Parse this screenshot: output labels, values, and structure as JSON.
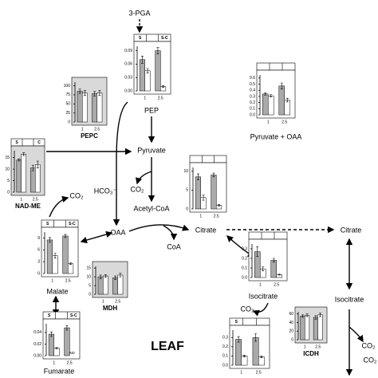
{
  "title": "LEAF",
  "nodes": [
    {
      "label": "3-PGA"
    },
    {
      "label": "PEP"
    },
    {
      "label": "Pyruvate"
    },
    {
      "label": "HCO₃⁻"
    },
    {
      "label": "CO₂"
    },
    {
      "label": "Acetyl-CoA"
    },
    {
      "label": "OAA"
    },
    {
      "label": "CoA"
    },
    {
      "label": "Citrate"
    },
    {
      "label": "Citrate"
    },
    {
      "label": "Isocitrate"
    },
    {
      "label": "Isocitrate"
    },
    {
      "label": "CO₂"
    },
    {
      "label": "CO₂"
    },
    {
      "label": "CO₂"
    },
    {
      "label": "Malate"
    },
    {
      "label": "Fumarate"
    },
    {
      "label": "Pyruvate + OAA"
    },
    {
      "label": "CO₂"
    }
  ],
  "panels": [
    {
      "header": [
        "S",
        "S-C"
      ],
      "xlabels": [
        "1",
        "2.5"
      ],
      "ylim": [
        0,
        0.1
      ],
      "yticks": [
        {
          "value": 0,
          "label": "0.00"
        },
        0.03,
        0.06,
        0.09
      ],
      "values": [
        0.07,
        0.045,
        0.09,
        0.01
      ],
      "errors": [
        0.008,
        0.005,
        0.007,
        0.002
      ]
    },
    {
      "label": "PEPC",
      "shaded": true,
      "xlabels": [
        "1",
        "2.5"
      ],
      "ylim": [
        0,
        110
      ],
      "yticks": [
        0,
        25,
        50,
        75,
        100
      ],
      "values": [
        85,
        80,
        78,
        80
      ],
      "errors": [
        6,
        7,
        6,
        7
      ]
    },
    {
      "header": [],
      "xlabels": [
        "1",
        "2.5"
      ],
      "ylim": [
        0,
        0.65
      ],
      "yticks": [
        {
          "value": 0,
          "label": "0.0"
        },
        0.1,
        0.2,
        0.3,
        0.4,
        0.5,
        0.6
      ],
      "values": [
        0.34,
        0.31,
        0.47,
        0.24
      ],
      "errors": [
        0.02,
        0.02,
        0.05,
        0.03
      ]
    },
    {
      "label": "NAD-ME",
      "shaded": true,
      "header": [
        "S",
        "C"
      ],
      "xlabels": [
        "1",
        "2.5"
      ],
      "ylim": [
        0,
        18
      ],
      "yticks": [
        0,
        5,
        10,
        15
      ],
      "values": [
        14,
        16.5,
        10.5,
        12
      ],
      "errors": [
        0.5,
        0.6,
        1.2,
        1.5
      ]
    },
    {
      "header": [],
      "xlabels": [
        "1",
        "2.5"
      ],
      "ylim": [
        0,
        11
      ],
      "yticks": [
        0,
        5,
        10
      ],
      "values": [
        8.5,
        3,
        9,
        1
      ],
      "errors": [
        0.8,
        0.7,
        0.5,
        0.2
      ]
    },
    {
      "header": [
        "S",
        "S-C"
      ],
      "xlabels": [
        "1",
        "2.5"
      ],
      "ylim": [
        0,
        10.5
      ],
      "yticks": [
        0,
        3,
        6,
        9
      ],
      "values": [
        8.5,
        4.5,
        9.5,
        2.5
      ],
      "errors": [
        0.6,
        0.6,
        0.4,
        0.2
      ]
    },
    {
      "label": "MDH",
      "shaded": true,
      "xlabels": [
        "1",
        "2.5"
      ],
      "ylim": [
        0,
        16
      ],
      "yticks": [
        0,
        5,
        10,
        15
      ],
      "values": [
        10,
        10.5,
        9.5,
        11
      ],
      "errors": [
        1,
        0.8,
        1,
        1
      ]
    },
    {
      "header": [],
      "xlabels": [
        "1",
        "2.5"
      ],
      "ylim": [
        0,
        0.35
      ],
      "yticks": [
        {
          "value": 0,
          "label": "0.0"
        },
        0.1,
        0.2,
        0.3
      ],
      "values": [
        0.27,
        0.09,
        0.18,
        0.03
      ],
      "errors": [
        0.05,
        0.02,
        0.02,
        0.005
      ]
    },
    {
      "header": [
        "S",
        "S-C"
      ],
      "xlabels": [
        "1",
        "2.5"
      ],
      "ylim": [
        0,
        0.055
      ],
      "yticks": [
        {
          "value": 0,
          "label": "0.00"
        },
        0.02,
        0.04
      ],
      "values": [
        0.037,
        0.013,
        0.048,
        0
      ],
      "errors": [
        0.004,
        0.001,
        0.004,
        0
      ],
      "annotation": "ND"
    },
    {
      "header": [
        "S"
      ],
      "xlabels": [
        "1",
        "2.5"
      ],
      "ylim": [
        0,
        0.38
      ],
      "yticks": [
        {
          "value": 0,
          "label": "0.0"
        },
        0.1,
        0.2,
        0.3
      ],
      "values": [
        0.28,
        0.1,
        0.3,
        0.09
      ],
      "errors": [
        0.03,
        0.01,
        0.04,
        0.01
      ]
    },
    {
      "label": "ICDH",
      "shaded": true,
      "xlabels": [
        "1",
        "2.5"
      ],
      "ylim": [
        0,
        65
      ],
      "yticks": [
        0,
        20,
        40,
        60
      ],
      "values": [
        55,
        57,
        52,
        58
      ],
      "errors": [
        3,
        3,
        4,
        4
      ]
    }
  ]
}
